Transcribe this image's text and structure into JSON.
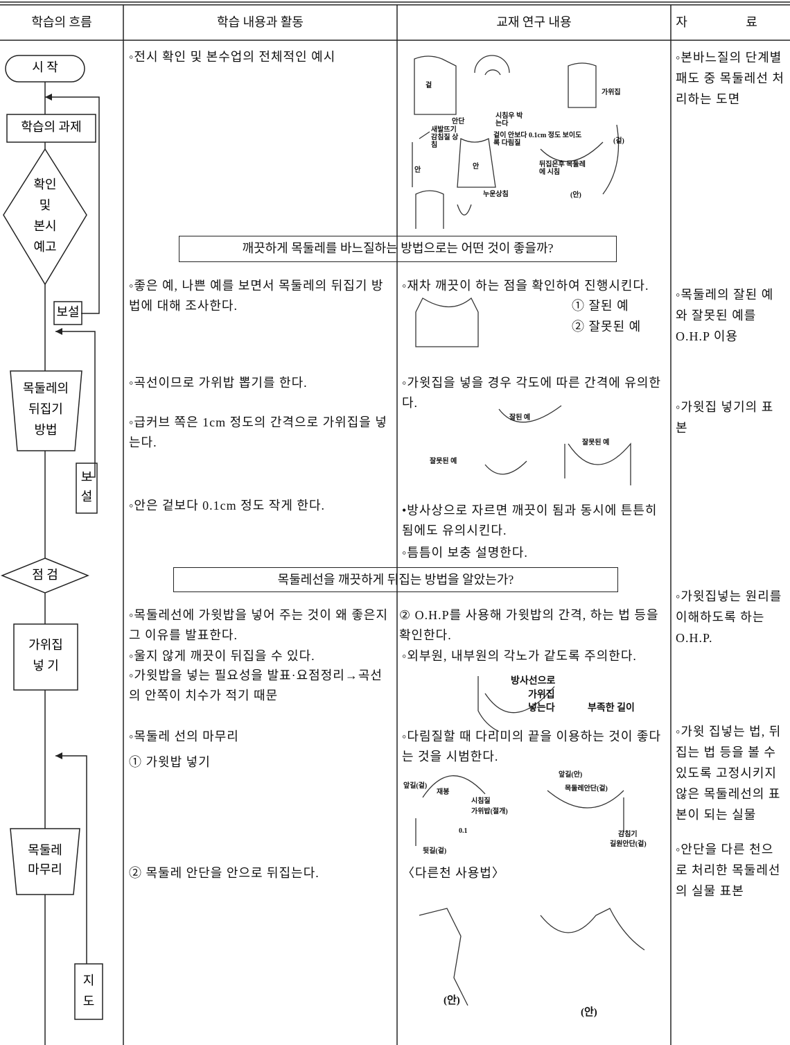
{
  "header": {
    "columns": [
      "학습의 흐름",
      "학습 내용과 활동",
      "교재 연구 내용",
      "자 료"
    ]
  },
  "flow": {
    "start": "시 작",
    "task": "학습의 과제",
    "preview": [
      "확인",
      "및",
      "본시",
      "예고"
    ],
    "supplement1": "보설",
    "method": [
      "목둘레의",
      "뒤집기",
      "방법"
    ],
    "supplement2": [
      "보",
      "설"
    ],
    "check": "점 검",
    "notch": [
      "가위집",
      "넣 기"
    ],
    "finish": [
      "목둘레",
      "마무리"
    ],
    "guide": [
      "지",
      "도"
    ]
  },
  "questions": [
    "깨끗하게 목둘레를 바느질하는 방법으로는 어떤 것이 좋을까?",
    "목둘레선을 깨끗하게 뒤집는 방법을 알았는가?"
  ],
  "activities": [
    "◦전시 확인 및 본수업의 전체적인 예시",
    "◦좋은 예, 나쁜 예를 보면서 목둘레의 뒤집기 방법에 대해 조사한다.",
    "◦곡선이므로 가위밥 뽑기를 한다.",
    "◦급커브 쪽은 1cm 정도의 간격으로 가위집을 넣는다.",
    "◦안은 겉보다 0.1cm 정도 작게 한다.",
    "◦목둘레선에 가윗밥을 넣어 주는 것이 왜 좋은지 그 이유를 발표한다.",
    "◦울지 않게 깨끗이 뒤집을 수 있다.",
    "◦가윗밥을 넣는 필요성을 발표·요점정리→곡선의 안쪽이 치수가 적기 때문",
    "◦목둘레 선의 마무리",
    "① 가윗밥 넣기",
    "② 목둘레 안단을 안으로 뒤집는다."
  ],
  "research": [
    "◦재차 깨끗이 하는 점을 확인하여 진행시킨다.",
    "① 잘된 예",
    "② 잘못된 예",
    "◦가윗집을 넣을 경우 각도에 따른 간격에 유의한다.",
    "•방사상으로 자르면 깨끗이 됨과 동시에 튼튼히 됨에도 유의시킨다.",
    "◦틈틈이 보충 설명한다.",
    "② O.H.P를 사용해 가윗밥의 간격, 하는 법 등을 확인한다.",
    "◦외부원, 내부원의 각노가 같도록 주의한다.",
    "◦다림질할 때 다리미의 끝을 이용하는 것이 좋다는 것을 시범한다.",
    "〈다른천 사용법〉"
  ],
  "materials": [
    "◦본바느질의 단계별 패도 중 목둘레선 처리하는 도면",
    "◦목둘레의 잘된 예와 잘못된 예를 O.H.P 이용",
    "◦가윗집 넣기의 표본",
    "◦가윗집넣는 원리를 이해하도록 하는 O.H.P.",
    "◦가윗 집넣는 법, 뒤집는 법 등을 볼 수 있도록 고정시키지 않은 목둘레선의 표본이 되는 실물",
    "◦안단을 다른 천으로 처리한 목둘레선의 실물 표본"
  ],
  "figure_labels": [
    "겉",
    "안단",
    "시침우 박는다",
    "겉이 안보다 0.1cm 정도 보이도록 다림질",
    "새발뜨기 감침질 상침",
    "안",
    "안",
    "뒤집은후 목둘레에 시침",
    "누운상침",
    "(겉)",
    "(안)",
    "가위집",
    "잘된 예",
    "잘못된 예",
    "잘못된 예",
    "방사선으로",
    "가위집",
    "넣는다",
    "부족한 길이",
    "앞길(겉)",
    "재봉",
    "시침질",
    "가위밥(절개)",
    "0.1",
    "뒷길(겉)",
    "앞길(안)",
    "목둘레안단(겉)",
    "감침기",
    "길원안단(겉)",
    "(안)",
    "(안)"
  ]
}
